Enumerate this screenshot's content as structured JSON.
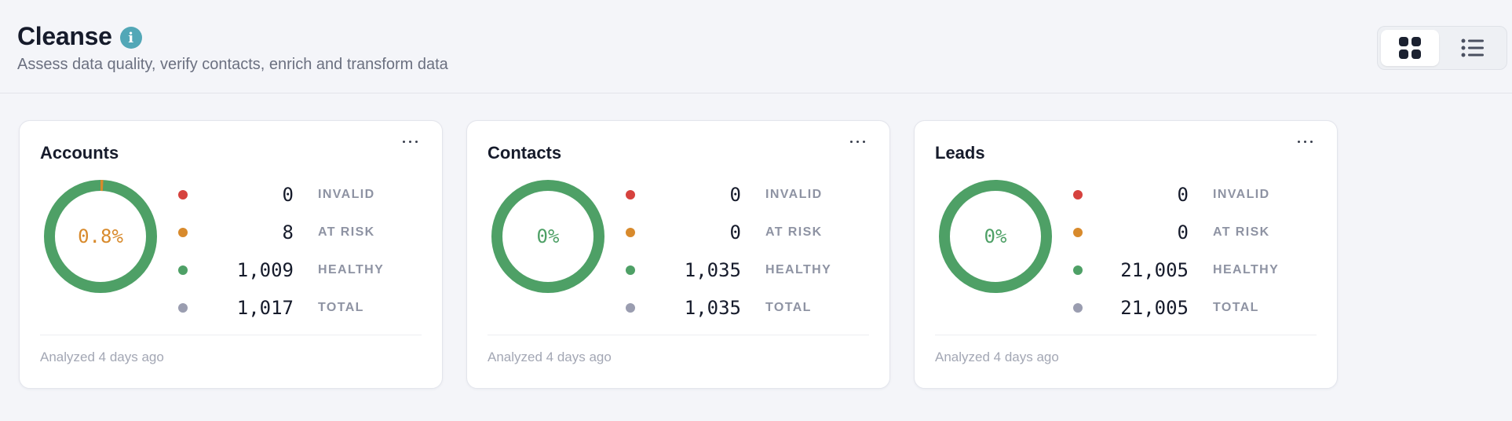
{
  "header": {
    "title": "Cleanse",
    "info_icon": "info-icon",
    "subtitle": "Assess data quality, verify contacts, enrich and transform data"
  },
  "view_toggle": {
    "options": [
      {
        "name": "grid-view",
        "icon": "grid-icon",
        "active": true
      },
      {
        "name": "list-view",
        "icon": "list-icon",
        "active": false
      }
    ]
  },
  "colors": {
    "invalid": "#d6423e",
    "at_risk": "#d88a2c",
    "healthy": "#4ea066",
    "total": "#9a9db0",
    "donut_track": "#4ea066",
    "donut_risk": "#d88a2c"
  },
  "labels": {
    "invalid": "INVALID",
    "at_risk": "AT RISK",
    "healthy": "HEALTHY",
    "total": "TOTAL"
  },
  "cards": [
    {
      "title": "Accounts",
      "donut_label": "0.8%",
      "donut_label_color": "#d88a2c",
      "risk_fraction": 0.008,
      "invalid": "0",
      "at_risk": "8",
      "healthy": "1,009",
      "total": "1,017",
      "footer": "Analyzed 4 days ago"
    },
    {
      "title": "Contacts",
      "donut_label": "0%",
      "donut_label_color": "#4ea066",
      "risk_fraction": 0,
      "invalid": "0",
      "at_risk": "0",
      "healthy": "1,035",
      "total": "1,035",
      "footer": "Analyzed 4 days ago"
    },
    {
      "title": "Leads",
      "donut_label": "0%",
      "donut_label_color": "#4ea066",
      "risk_fraction": 0,
      "invalid": "0",
      "at_risk": "0",
      "healthy": "21,005",
      "total": "21,005",
      "footer": "Analyzed 4 days ago"
    }
  ]
}
